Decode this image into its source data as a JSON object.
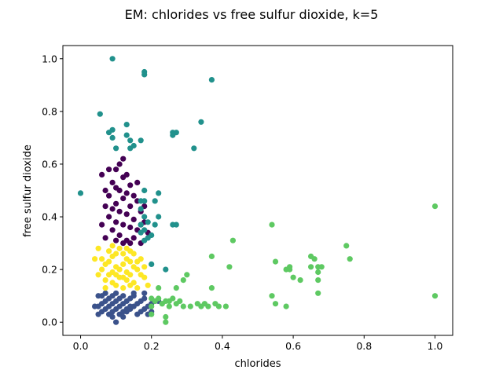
{
  "chart_data": {
    "type": "scatter",
    "title": "EM: chlorides vs free sulfur dioxide, k=5",
    "xlabel": "chlorides",
    "ylabel": "free sulfur dioxide",
    "xlim": [
      -0.05,
      1.05
    ],
    "ylim": [
      -0.05,
      1.05
    ],
    "xticks": [
      "0.0",
      "0.2",
      "0.4",
      "0.6",
      "0.8",
      "1.0"
    ],
    "yticks": [
      "0.0",
      "0.2",
      "0.4",
      "0.6",
      "0.8",
      "1.0"
    ],
    "grid": false,
    "series": [
      {
        "color": "#3b528b",
        "points": [
          [
            0.05,
            0.03
          ],
          [
            0.06,
            0.04
          ],
          [
            0.07,
            0.05
          ],
          [
            0.08,
            0.06
          ],
          [
            0.09,
            0.07
          ],
          [
            0.1,
            0.08
          ],
          [
            0.11,
            0.09
          ],
          [
            0.12,
            0.1
          ],
          [
            0.13,
            0.04
          ],
          [
            0.14,
            0.05
          ],
          [
            0.15,
            0.06
          ],
          [
            0.16,
            0.07
          ],
          [
            0.17,
            0.08
          ],
          [
            0.18,
            0.09
          ],
          [
            0.06,
            0.1
          ],
          [
            0.07,
            0.11
          ],
          [
            0.08,
            0.03
          ],
          [
            0.09,
            0.04
          ],
          [
            0.1,
            0.05
          ],
          [
            0.11,
            0.06
          ],
          [
            0.12,
            0.07
          ],
          [
            0.13,
            0.08
          ],
          [
            0.14,
            0.09
          ],
          [
            0.15,
            0.1
          ],
          [
            0.16,
            0.03
          ],
          [
            0.17,
            0.04
          ],
          [
            0.18,
            0.05
          ],
          [
            0.19,
            0.06
          ],
          [
            0.2,
            0.07
          ],
          [
            0.21,
            0.08
          ],
          [
            0.05,
            0.06
          ],
          [
            0.06,
            0.07
          ],
          [
            0.07,
            0.08
          ],
          [
            0.08,
            0.09
          ],
          [
            0.09,
            0.1
          ],
          [
            0.1,
            0.11
          ],
          [
            0.11,
            0.03
          ],
          [
            0.12,
            0.04
          ],
          [
            0.13,
            0.05
          ],
          [
            0.14,
            0.06
          ],
          [
            0.1,
            0.0
          ],
          [
            0.19,
            0.03
          ],
          [
            0.2,
            0.04
          ],
          [
            0.15,
            0.11
          ],
          [
            0.05,
            0.1
          ],
          [
            0.04,
            0.06
          ],
          [
            0.22,
            0.08
          ],
          [
            0.18,
            0.11
          ],
          [
            0.12,
            0.02
          ],
          [
            0.09,
            0.02
          ]
        ]
      },
      {
        "color": "#fde725",
        "points": [
          [
            0.04,
            0.24
          ],
          [
            0.05,
            0.28
          ],
          [
            0.06,
            0.2
          ],
          [
            0.07,
            0.22
          ],
          [
            0.08,
            0.18
          ],
          [
            0.09,
            0.25
          ],
          [
            0.1,
            0.21
          ],
          [
            0.11,
            0.17
          ],
          [
            0.12,
            0.26
          ],
          [
            0.13,
            0.19
          ],
          [
            0.14,
            0.23
          ],
          [
            0.15,
            0.15
          ],
          [
            0.16,
            0.2
          ],
          [
            0.17,
            0.24
          ],
          [
            0.18,
            0.17
          ],
          [
            0.19,
            0.14
          ],
          [
            0.07,
            0.16
          ],
          [
            0.08,
            0.27
          ],
          [
            0.09,
            0.19
          ],
          [
            0.1,
            0.14
          ],
          [
            0.11,
            0.28
          ],
          [
            0.12,
            0.22
          ],
          [
            0.13,
            0.16
          ],
          [
            0.14,
            0.27
          ],
          [
            0.15,
            0.21
          ],
          [
            0.16,
            0.13
          ],
          [
            0.17,
            0.18
          ],
          [
            0.06,
            0.24
          ],
          [
            0.05,
            0.18
          ],
          [
            0.08,
            0.23
          ],
          [
            0.09,
            0.15
          ],
          [
            0.1,
            0.26
          ],
          [
            0.11,
            0.2
          ],
          [
            0.12,
            0.13
          ],
          [
            0.13,
            0.24
          ],
          [
            0.14,
            0.18
          ],
          [
            0.15,
            0.26
          ],
          [
            0.16,
            0.23
          ],
          [
            0.07,
            0.13
          ],
          [
            0.18,
            0.21
          ],
          [
            0.09,
            0.29
          ],
          [
            0.12,
            0.17
          ],
          [
            0.1,
            0.18
          ],
          [
            0.13,
            0.28
          ],
          [
            0.14,
            0.14
          ]
        ]
      },
      {
        "color": "#440154",
        "points": [
          [
            0.06,
            0.56
          ],
          [
            0.07,
            0.5
          ],
          [
            0.07,
            0.44
          ],
          [
            0.08,
            0.4
          ],
          [
            0.08,
            0.48
          ],
          [
            0.09,
            0.35
          ],
          [
            0.09,
            0.53
          ],
          [
            0.1,
            0.45
          ],
          [
            0.1,
            0.38
          ],
          [
            0.1,
            0.58
          ],
          [
            0.11,
            0.42
          ],
          [
            0.11,
            0.5
          ],
          [
            0.11,
            0.33
          ],
          [
            0.12,
            0.47
          ],
          [
            0.12,
            0.37
          ],
          [
            0.12,
            0.55
          ],
          [
            0.13,
            0.41
          ],
          [
            0.13,
            0.31
          ],
          [
            0.13,
            0.49
          ],
          [
            0.14,
            0.36
          ],
          [
            0.14,
            0.44
          ],
          [
            0.14,
            0.52
          ],
          [
            0.15,
            0.39
          ],
          [
            0.15,
            0.32
          ],
          [
            0.16,
            0.46
          ],
          [
            0.16,
            0.35
          ],
          [
            0.17,
            0.42
          ],
          [
            0.17,
            0.3
          ],
          [
            0.18,
            0.38
          ],
          [
            0.18,
            0.44
          ],
          [
            0.19,
            0.34
          ],
          [
            0.06,
            0.37
          ],
          [
            0.07,
            0.32
          ],
          [
            0.08,
            0.58
          ],
          [
            0.09,
            0.43
          ],
          [
            0.1,
            0.31
          ],
          [
            0.11,
            0.6
          ],
          [
            0.12,
            0.3
          ],
          [
            0.13,
            0.56
          ],
          [
            0.14,
            0.3
          ],
          [
            0.15,
            0.48
          ],
          [
            0.16,
            0.53
          ],
          [
            0.17,
            0.37
          ],
          [
            0.12,
            0.62
          ],
          [
            0.1,
            0.51
          ]
        ]
      },
      {
        "color": "#21918c",
        "points": [
          [
            0.0,
            0.49
          ],
          [
            0.055,
            0.79
          ],
          [
            0.09,
            1.0
          ],
          [
            0.18,
            0.94
          ],
          [
            0.18,
            0.95
          ],
          [
            0.37,
            0.92
          ],
          [
            0.08,
            0.72
          ],
          [
            0.09,
            0.73
          ],
          [
            0.13,
            0.75
          ],
          [
            0.13,
            0.71
          ],
          [
            0.09,
            0.7
          ],
          [
            0.14,
            0.69
          ],
          [
            0.17,
            0.69
          ],
          [
            0.15,
            0.67
          ],
          [
            0.1,
            0.66
          ],
          [
            0.14,
            0.66
          ],
          [
            0.26,
            0.72
          ],
          [
            0.27,
            0.72
          ],
          [
            0.26,
            0.71
          ],
          [
            0.34,
            0.76
          ],
          [
            0.32,
            0.66
          ],
          [
            0.18,
            0.5
          ],
          [
            0.22,
            0.49
          ],
          [
            0.21,
            0.46
          ],
          [
            0.17,
            0.46
          ],
          [
            0.18,
            0.46
          ],
          [
            0.17,
            0.43
          ],
          [
            0.18,
            0.4
          ],
          [
            0.19,
            0.38
          ],
          [
            0.18,
            0.35
          ],
          [
            0.17,
            0.34
          ],
          [
            0.21,
            0.37
          ],
          [
            0.26,
            0.37
          ],
          [
            0.27,
            0.37
          ],
          [
            0.19,
            0.32
          ],
          [
            0.2,
            0.33
          ],
          [
            0.22,
            0.4
          ],
          [
            0.2,
            0.22
          ],
          [
            0.24,
            0.2
          ],
          [
            0.17,
            0.37
          ],
          [
            0.18,
            0.31
          ]
        ]
      },
      {
        "color": "#5ec962",
        "points": [
          [
            0.2,
            0.06
          ],
          [
            0.21,
            0.08
          ],
          [
            0.22,
            0.09
          ],
          [
            0.23,
            0.07
          ],
          [
            0.24,
            0.08
          ],
          [
            0.25,
            0.06
          ],
          [
            0.26,
            0.09
          ],
          [
            0.27,
            0.07
          ],
          [
            0.28,
            0.08
          ],
          [
            0.29,
            0.06
          ],
          [
            0.24,
            0.0
          ],
          [
            0.24,
            0.02
          ],
          [
            0.22,
            0.13
          ],
          [
            0.27,
            0.13
          ],
          [
            0.29,
            0.16
          ],
          [
            0.3,
            0.18
          ],
          [
            0.31,
            0.06
          ],
          [
            0.33,
            0.07
          ],
          [
            0.34,
            0.06
          ],
          [
            0.35,
            0.07
          ],
          [
            0.36,
            0.06
          ],
          [
            0.38,
            0.07
          ],
          [
            0.39,
            0.06
          ],
          [
            0.41,
            0.06
          ],
          [
            0.37,
            0.13
          ],
          [
            0.37,
            0.25
          ],
          [
            0.43,
            0.31
          ],
          [
            0.42,
            0.21
          ],
          [
            0.54,
            0.37
          ],
          [
            0.54,
            0.1
          ],
          [
            0.55,
            0.07
          ],
          [
            0.55,
            0.23
          ],
          [
            0.58,
            0.06
          ],
          [
            0.58,
            0.2
          ],
          [
            0.59,
            0.21
          ],
          [
            0.59,
            0.2
          ],
          [
            0.6,
            0.17
          ],
          [
            0.62,
            0.16
          ],
          [
            0.65,
            0.21
          ],
          [
            0.65,
            0.25
          ],
          [
            0.66,
            0.24
          ],
          [
            0.67,
            0.21
          ],
          [
            0.67,
            0.19
          ],
          [
            0.67,
            0.16
          ],
          [
            0.67,
            0.11
          ],
          [
            0.68,
            0.21
          ],
          [
            0.75,
            0.29
          ],
          [
            0.76,
            0.24
          ],
          [
            1.0,
            0.44
          ],
          [
            1.0,
            0.1
          ],
          [
            0.2,
            0.03
          ],
          [
            0.2,
            0.09
          ],
          [
            0.25,
            0.08
          ],
          [
            0.23,
            0.07
          ]
        ]
      }
    ]
  }
}
